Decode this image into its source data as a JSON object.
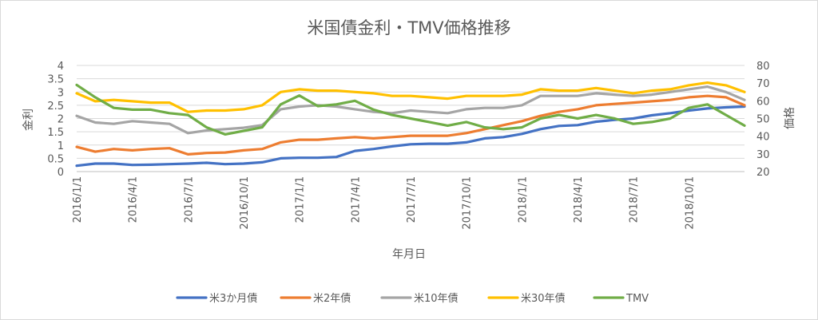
{
  "chart_data": {
    "type": "line",
    "title": "米国債金利・TMV価格推移",
    "xlabel": "年月日",
    "ylabel_left": "金利",
    "ylabel_right": "価格",
    "x_ticks": [
      "2016/1/1",
      "2016/4/1",
      "2016/7/1",
      "2016/10/1",
      "2017/1/1",
      "2017/4/1",
      "2017/7/1",
      "2017/10/1",
      "2018/1/1",
      "2018/4/1",
      "2018/7/1",
      "2018/10/1"
    ],
    "x_range_months": [
      0,
      36
    ],
    "y_left": {
      "ticks": [
        "0",
        "0.5",
        "1",
        "1.5",
        "2",
        "2.5",
        "3",
        "3.5",
        "4"
      ],
      "min": 0,
      "max": 4
    },
    "y_right": {
      "ticks": [
        "20",
        "30",
        "40",
        "50",
        "60",
        "70",
        "80"
      ],
      "min": 20,
      "max": 80
    },
    "grid": true,
    "legend_position": "bottom",
    "series": [
      {
        "name": "米3か月債",
        "axis": "left",
        "color": "#4472C4",
        "points": [
          [
            0,
            0.22
          ],
          [
            1,
            0.3
          ],
          [
            2,
            0.3
          ],
          [
            3,
            0.25
          ],
          [
            4,
            0.26
          ],
          [
            5,
            0.28
          ],
          [
            6,
            0.3
          ],
          [
            7,
            0.33
          ],
          [
            8,
            0.28
          ],
          [
            9,
            0.3
          ],
          [
            10,
            0.35
          ],
          [
            11,
            0.5
          ],
          [
            12,
            0.52
          ],
          [
            13,
            0.52
          ],
          [
            14,
            0.55
          ],
          [
            15,
            0.78
          ],
          [
            16,
            0.85
          ],
          [
            17,
            0.95
          ],
          [
            18,
            1.03
          ],
          [
            19,
            1.05
          ],
          [
            20,
            1.05
          ],
          [
            21,
            1.1
          ],
          [
            22,
            1.25
          ],
          [
            23,
            1.3
          ],
          [
            24,
            1.42
          ],
          [
            25,
            1.6
          ],
          [
            26,
            1.72
          ],
          [
            27,
            1.75
          ],
          [
            28,
            1.88
          ],
          [
            29,
            1.95
          ],
          [
            30,
            2.0
          ],
          [
            31,
            2.12
          ],
          [
            32,
            2.2
          ],
          [
            33,
            2.3
          ],
          [
            34,
            2.38
          ],
          [
            35,
            2.42
          ],
          [
            36,
            2.45
          ]
        ]
      },
      {
        "name": "米2年債",
        "axis": "left",
        "color": "#ED7D31",
        "points": [
          [
            0,
            0.93
          ],
          [
            1,
            0.75
          ],
          [
            2,
            0.85
          ],
          [
            3,
            0.8
          ],
          [
            4,
            0.85
          ],
          [
            5,
            0.88
          ],
          [
            6,
            0.65
          ],
          [
            7,
            0.7
          ],
          [
            8,
            0.72
          ],
          [
            9,
            0.8
          ],
          [
            10,
            0.85
          ],
          [
            11,
            1.1
          ],
          [
            12,
            1.2
          ],
          [
            13,
            1.2
          ],
          [
            14,
            1.25
          ],
          [
            15,
            1.3
          ],
          [
            16,
            1.25
          ],
          [
            17,
            1.3
          ],
          [
            18,
            1.35
          ],
          [
            19,
            1.35
          ],
          [
            20,
            1.35
          ],
          [
            21,
            1.45
          ],
          [
            22,
            1.6
          ],
          [
            23,
            1.75
          ],
          [
            24,
            1.9
          ],
          [
            25,
            2.1
          ],
          [
            26,
            2.25
          ],
          [
            27,
            2.35
          ],
          [
            28,
            2.5
          ],
          [
            29,
            2.55
          ],
          [
            30,
            2.6
          ],
          [
            31,
            2.65
          ],
          [
            32,
            2.7
          ],
          [
            33,
            2.8
          ],
          [
            34,
            2.85
          ],
          [
            35,
            2.8
          ],
          [
            36,
            2.5
          ]
        ]
      },
      {
        "name": "米10年債",
        "axis": "left",
        "color": "#A5A5A5",
        "points": [
          [
            0,
            2.1
          ],
          [
            1,
            1.85
          ],
          [
            2,
            1.8
          ],
          [
            3,
            1.9
          ],
          [
            4,
            1.85
          ],
          [
            5,
            1.8
          ],
          [
            6,
            1.45
          ],
          [
            7,
            1.55
          ],
          [
            8,
            1.6
          ],
          [
            9,
            1.65
          ],
          [
            10,
            1.75
          ],
          [
            11,
            2.35
          ],
          [
            12,
            2.45
          ],
          [
            13,
            2.5
          ],
          [
            14,
            2.45
          ],
          [
            15,
            2.35
          ],
          [
            16,
            2.25
          ],
          [
            17,
            2.2
          ],
          [
            18,
            2.3
          ],
          [
            19,
            2.25
          ],
          [
            20,
            2.2
          ],
          [
            21,
            2.35
          ],
          [
            22,
            2.4
          ],
          [
            23,
            2.4
          ],
          [
            24,
            2.5
          ],
          [
            25,
            2.85
          ],
          [
            26,
            2.85
          ],
          [
            27,
            2.85
          ],
          [
            28,
            2.95
          ],
          [
            29,
            2.9
          ],
          [
            30,
            2.85
          ],
          [
            31,
            2.9
          ],
          [
            32,
            3.0
          ],
          [
            33,
            3.1
          ],
          [
            34,
            3.2
          ],
          [
            35,
            3.0
          ],
          [
            36,
            2.7
          ]
        ]
      },
      {
        "name": "米30年債",
        "axis": "left",
        "color": "#FFC000",
        "points": [
          [
            0,
            2.95
          ],
          [
            1,
            2.65
          ],
          [
            2,
            2.7
          ],
          [
            3,
            2.65
          ],
          [
            4,
            2.6
          ],
          [
            5,
            2.6
          ],
          [
            6,
            2.25
          ],
          [
            7,
            2.3
          ],
          [
            8,
            2.3
          ],
          [
            9,
            2.35
          ],
          [
            10,
            2.5
          ],
          [
            11,
            3.0
          ],
          [
            12,
            3.1
          ],
          [
            13,
            3.05
          ],
          [
            14,
            3.05
          ],
          [
            15,
            3.0
          ],
          [
            16,
            2.95
          ],
          [
            17,
            2.85
          ],
          [
            18,
            2.85
          ],
          [
            19,
            2.8
          ],
          [
            20,
            2.75
          ],
          [
            21,
            2.85
          ],
          [
            22,
            2.85
          ],
          [
            23,
            2.85
          ],
          [
            24,
            2.9
          ],
          [
            25,
            3.1
          ],
          [
            26,
            3.05
          ],
          [
            27,
            3.05
          ],
          [
            28,
            3.15
          ],
          [
            29,
            3.05
          ],
          [
            30,
            2.95
          ],
          [
            31,
            3.05
          ],
          [
            32,
            3.1
          ],
          [
            33,
            3.25
          ],
          [
            34,
            3.35
          ],
          [
            35,
            3.25
          ],
          [
            36,
            3.0
          ]
        ]
      },
      {
        "name": "TMV",
        "axis": "right",
        "color": "#70AD47",
        "points": [
          [
            0,
            69
          ],
          [
            1,
            62
          ],
          [
            2,
            56
          ],
          [
            3,
            55
          ],
          [
            4,
            55
          ],
          [
            5,
            53
          ],
          [
            6,
            52
          ],
          [
            7,
            45
          ],
          [
            8,
            41
          ],
          [
            9,
            43
          ],
          [
            10,
            45
          ],
          [
            11,
            58
          ],
          [
            12,
            63
          ],
          [
            13,
            57
          ],
          [
            14,
            58
          ],
          [
            15,
            60
          ],
          [
            16,
            55
          ],
          [
            17,
            52
          ],
          [
            18,
            50
          ],
          [
            19,
            48
          ],
          [
            20,
            46
          ],
          [
            21,
            48
          ],
          [
            22,
            45
          ],
          [
            23,
            44
          ],
          [
            24,
            45
          ],
          [
            25,
            50
          ],
          [
            26,
            52
          ],
          [
            27,
            50
          ],
          [
            28,
            52
          ],
          [
            29,
            50
          ],
          [
            30,
            47
          ],
          [
            31,
            48
          ],
          [
            32,
            50
          ],
          [
            33,
            56
          ],
          [
            34,
            58
          ],
          [
            35,
            52
          ],
          [
            36,
            46
          ]
        ]
      }
    ]
  }
}
